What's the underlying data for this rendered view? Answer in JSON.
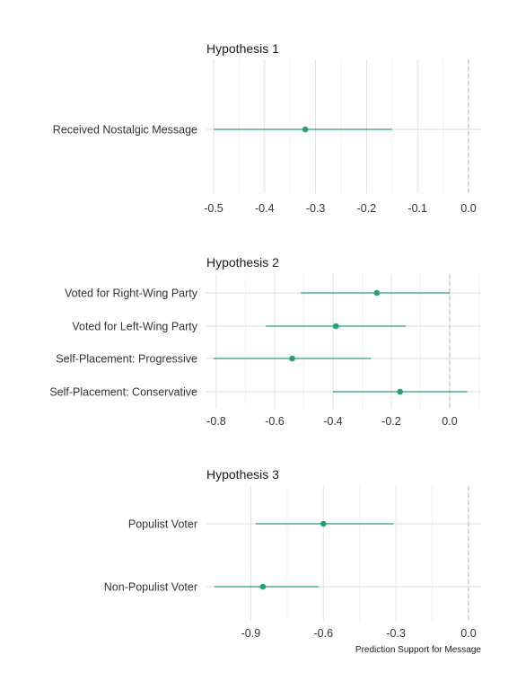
{
  "colors": {
    "point": "#2a9d7c",
    "grid_major": "#dedede",
    "grid_minor": "#efefef",
    "zero_line": "#c8c8c8"
  },
  "chart_data": [
    {
      "type": "scatter",
      "title": "Hypothesis 1",
      "xlabel": "",
      "xlim": [
        -0.5,
        0.0
      ],
      "xticks": [
        -0.5,
        -0.4,
        -0.3,
        -0.2,
        -0.1,
        0.0
      ],
      "xtick_labels": [
        "-0.5",
        "-0.4",
        "-0.3",
        "-0.2",
        "-0.1",
        "0.0"
      ],
      "grid": true,
      "reference_line": 0,
      "categories": [
        "Received Nostalgic Message"
      ],
      "estimates": [
        -0.32
      ],
      "lower": [
        -0.5
      ],
      "upper": [
        -0.15
      ]
    },
    {
      "type": "scatter",
      "title": "Hypothesis 2",
      "xlabel": "",
      "xlim": [
        -0.8,
        0.0
      ],
      "xticks": [
        -0.8,
        -0.6,
        -0.4,
        -0.2,
        0.0
      ],
      "xtick_labels": [
        "-0.8",
        "-0.6",
        "-0.4",
        "-0.2",
        "0.0"
      ],
      "grid": true,
      "reference_line": 0,
      "categories": [
        "Voted for Right-Wing Party",
        "Voted for Left-Wing Party",
        "Self-Placement: Progressive",
        "Self-Placement: Conservative"
      ],
      "estimates": [
        -0.25,
        -0.39,
        -0.54,
        -0.17
      ],
      "lower": [
        -0.51,
        -0.63,
        -0.81,
        -0.4
      ],
      "upper": [
        0.0,
        -0.15,
        -0.27,
        0.06
      ]
    },
    {
      "type": "scatter",
      "title": "Hypothesis 3",
      "xlabel": "Prediction Support for Message",
      "xlim": [
        -1.05,
        0.0
      ],
      "xticks": [
        -0.9,
        -0.6,
        -0.3,
        0.0
      ],
      "xtick_labels": [
        "-0.9",
        "-0.6",
        "-0.3",
        "0.0"
      ],
      "grid": true,
      "reference_line": 0,
      "categories": [
        "Populist Voter",
        "Non-Populist Voter"
      ],
      "estimates": [
        -0.6,
        -0.85
      ],
      "lower": [
        -0.88,
        -1.05
      ],
      "upper": [
        -0.31,
        -0.62
      ]
    }
  ]
}
